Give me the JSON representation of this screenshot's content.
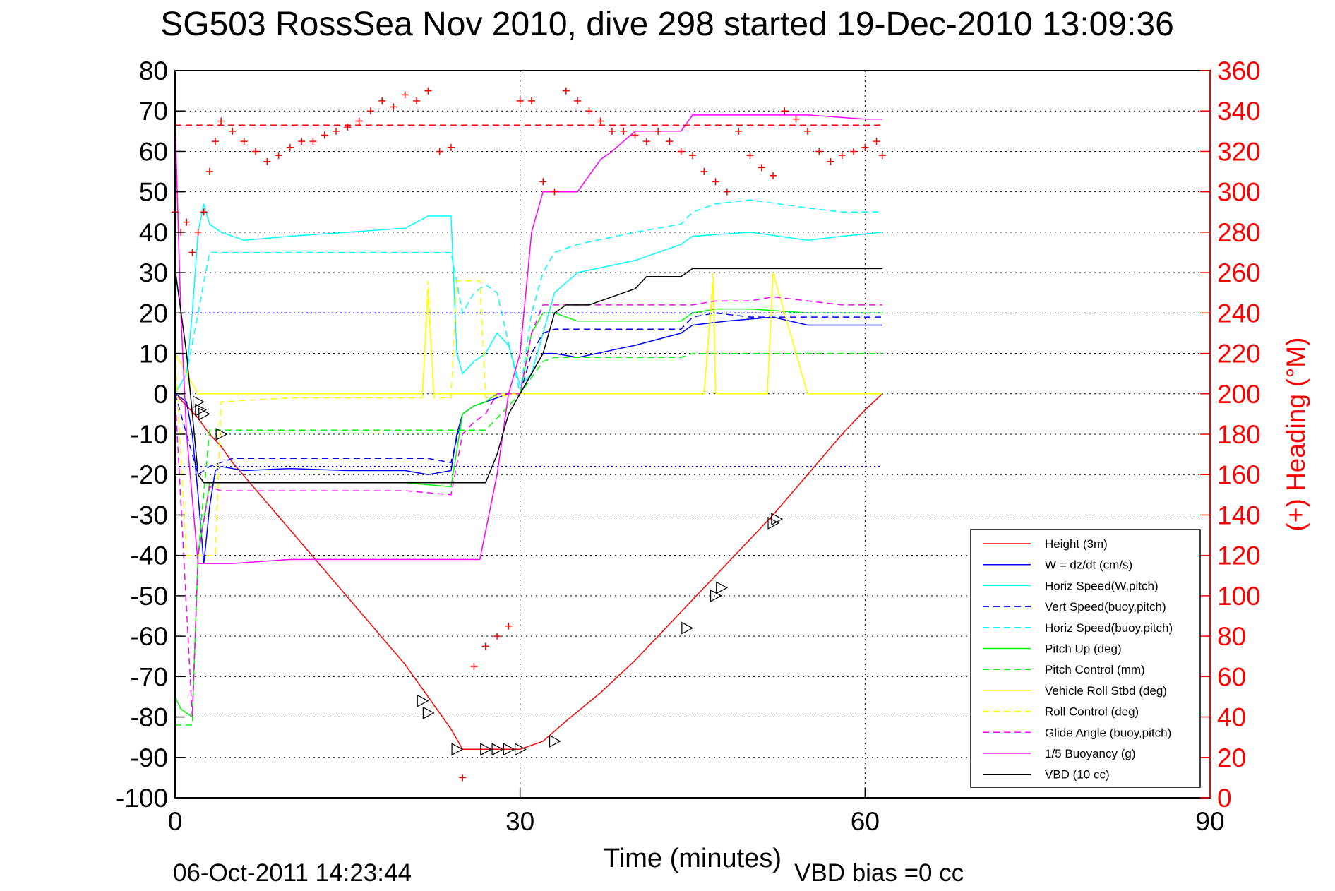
{
  "chart_data": {
    "type": "line",
    "title": "SG503 RossSea Nov 2010, dive 298 started 19-Dec-2010 13:09:36",
    "xlabel": "Time (minutes)",
    "ylabel_right": "(+) Heading (°M)",
    "footer_date": "06-Oct-2011 14:23:44",
    "footer_note": "VBD bias =0 cc",
    "xlim": [
      0,
      90
    ],
    "ylim": [
      -100,
      80
    ],
    "ylim_right": [
      0,
      360
    ],
    "x_ticks": [
      "0",
      "30",
      "60",
      "90"
    ],
    "y_ticks": [
      "80",
      "70",
      "60",
      "50",
      "40",
      "30",
      "20",
      "10",
      "0",
      "-10",
      "-20",
      "-30",
      "-40",
      "-50",
      "-60",
      "-70",
      "-80",
      "-90",
      "-100"
    ],
    "y_ticks_right": [
      "360",
      "340",
      "320",
      "300",
      "280",
      "260",
      "240",
      "220",
      "200",
      "180",
      "160",
      "140",
      "120",
      "100",
      "80",
      "60",
      "40",
      "20",
      "0"
    ],
    "grid": true,
    "legend_placement": "lower-right",
    "legend": [
      {
        "label": "Height (3m)",
        "color": "#ff0000",
        "dash": "solid"
      },
      {
        "label": "W = dz/dt (cm/s)",
        "color": "#0000ff",
        "dash": "solid"
      },
      {
        "label": "Horiz Speed(W,pitch)",
        "color": "#00ffff",
        "dash": "solid"
      },
      {
        "label": "Vert Speed(buoy,pitch)",
        "color": "#0000ff",
        "dash": "dashed"
      },
      {
        "label": "Horiz Speed(buoy,pitch)",
        "color": "#00ffff",
        "dash": "dashed"
      },
      {
        "label": "Pitch Up (deg)",
        "color": "#00ff00",
        "dash": "solid"
      },
      {
        "label": "Pitch Control (mm)",
        "color": "#00ff00",
        "dash": "dashed"
      },
      {
        "label": "Vehicle Roll Stbd (deg)",
        "color": "#ffff00",
        "dash": "solid"
      },
      {
        "label": "Roll Control (deg)",
        "color": "#ffff00",
        "dash": "dashed"
      },
      {
        "label": "Glide Angle (buoy,pitch)",
        "color": "#ff00ff",
        "dash": "dashed"
      },
      {
        "label": "1/5 Buoyancy (g)",
        "color": "#ff00ff",
        "dash": "solid"
      },
      {
        "label": "VBD (10 cc)",
        "color": "#000000",
        "dash": "solid"
      }
    ],
    "series": [
      {
        "name": "Height (3m)",
        "color": "#ff0000",
        "dash": "solid",
        "axis": "left",
        "x": [
          0,
          1,
          2,
          3,
          4,
          5,
          8,
          11,
          14,
          17,
          20,
          22,
          24,
          25,
          26,
          27,
          28,
          30,
          32,
          34,
          37,
          40,
          43,
          46,
          49,
          52,
          55,
          58,
          60,
          61.5
        ],
        "y": [
          0,
          -3,
          -6,
          -10,
          -13,
          -17,
          -27,
          -37,
          -47,
          -57,
          -67,
          -75,
          -83,
          -88,
          -88,
          -88,
          -88,
          -88,
          -86,
          -81,
          -74,
          -66,
          -57,
          -48,
          -39,
          -30,
          -20,
          -10,
          -4,
          0
        ]
      },
      {
        "name": "W = dz/dt (cm/s)",
        "color": "#0000ff",
        "dash": "solid",
        "axis": "left",
        "x": [
          0,
          1,
          1.5,
          2,
          2.5,
          3,
          3.5,
          4,
          6,
          10,
          15,
          20,
          22,
          24,
          24.5,
          25,
          26,
          27,
          28,
          29,
          30,
          31,
          32,
          33,
          35,
          40,
          44,
          45,
          48,
          52,
          55,
          58,
          61.5
        ],
        "y": [
          0,
          -2,
          -10,
          -25,
          -42,
          -28,
          -19,
          -18,
          -19,
          -18.5,
          -19,
          -19,
          -20,
          -19,
          -10,
          -5,
          -3,
          -2,
          -1,
          0,
          0,
          5,
          10,
          10,
          9,
          12,
          15,
          17,
          18,
          19,
          17,
          17,
          17
        ]
      },
      {
        "name": "Horiz Speed(W,pitch)",
        "color": "#00ffff",
        "dash": "solid",
        "axis": "left",
        "x": [
          0,
          1,
          1.5,
          2,
          2.5,
          3,
          4,
          6,
          10,
          15,
          20,
          22,
          24,
          24.5,
          25,
          26,
          27,
          28,
          29,
          30,
          31,
          32,
          33,
          35,
          40,
          44,
          45,
          50,
          55,
          58,
          61.5
        ],
        "y": [
          0,
          5,
          20,
          40,
          47,
          42,
          40,
          38,
          39,
          40,
          41,
          44,
          44,
          10,
          5,
          8,
          10,
          15,
          12,
          2,
          5,
          15,
          25,
          30,
          33,
          37,
          39,
          40,
          38,
          39,
          40
        ]
      },
      {
        "name": "Vert Speed(buoy,pitch)",
        "color": "#0000ff",
        "dash": "dashed",
        "axis": "left",
        "x": [
          0,
          2,
          3,
          5,
          10,
          15,
          20,
          22,
          24,
          25,
          26,
          27,
          28,
          30,
          31,
          32,
          33,
          35,
          40,
          44,
          45,
          47,
          50,
          55,
          58,
          61.5
        ],
        "y": [
          0,
          -20,
          -18,
          -16,
          -16,
          -16,
          -16,
          -16,
          -17,
          -5,
          -3,
          -2,
          0,
          0,
          10,
          15,
          16,
          16,
          16,
          16,
          19,
          20,
          19,
          19,
          19,
          19
        ]
      },
      {
        "name": "Horiz Speed(buoy,pitch)",
        "color": "#00ffff",
        "dash": "dashed",
        "axis": "left",
        "x": [
          0,
          1,
          2,
          3,
          5,
          10,
          15,
          20,
          24,
          25,
          26,
          27,
          28,
          30,
          31,
          32,
          33,
          35,
          40,
          44,
          45,
          47,
          50,
          55,
          58,
          61.5
        ],
        "y": [
          0,
          5,
          20,
          35,
          35,
          35,
          35,
          35,
          35,
          20,
          25,
          27,
          25,
          0,
          20,
          30,
          35,
          37,
          40,
          42,
          45,
          47,
          48,
          46,
          45,
          45
        ]
      },
      {
        "name": "Pitch Up (deg)",
        "color": "#00ff00",
        "dash": "solid",
        "axis": "left",
        "x": [
          0,
          0.5,
          1.5,
          2,
          3,
          4,
          6,
          10,
          15,
          20,
          24,
          25,
          26,
          27,
          28,
          30,
          31,
          32,
          33,
          35,
          40,
          44,
          45,
          47,
          50,
          55,
          58,
          61.5
        ],
        "y": [
          -75,
          -78,
          -80,
          -40,
          -22,
          -22,
          -22,
          -22,
          -22,
          -22,
          -23,
          -5,
          -3,
          -2,
          0,
          0,
          15,
          20,
          20,
          18,
          18,
          18,
          20,
          21,
          21,
          20,
          20,
          20
        ]
      },
      {
        "name": "Pitch Control (mm)",
        "color": "#00ff00",
        "dash": "dashed",
        "axis": "left",
        "x": [
          0,
          1.5,
          2,
          3,
          5,
          10,
          15,
          20,
          24,
          25,
          27,
          30,
          32,
          33,
          40,
          44,
          45,
          50,
          55,
          61.5
        ],
        "y": [
          -82,
          -82,
          -40,
          -9,
          -9,
          -9,
          -9,
          -9,
          -9,
          -9,
          -9,
          0,
          8,
          9,
          9,
          9,
          10,
          10,
          10,
          10
        ]
      },
      {
        "name": "Vehicle Roll Stbd (deg)",
        "color": "#ffff00",
        "dash": "solid",
        "axis": "left",
        "x": [
          0,
          1,
          2,
          3,
          4,
          5,
          10,
          15,
          20,
          21.5,
          22,
          22.5,
          24,
          25,
          26,
          27,
          28,
          30,
          33,
          40,
          46,
          46.8,
          47,
          50,
          51.5,
          52,
          55,
          58,
          61.5
        ],
        "y": [
          10,
          5,
          0,
          0,
          0,
          0,
          0,
          0,
          0,
          0,
          25,
          0,
          0,
          0,
          0,
          0,
          0,
          0,
          0,
          0,
          0,
          28,
          0,
          0,
          0,
          30,
          0,
          0,
          0
        ]
      },
      {
        "name": "Roll Control (deg)",
        "color": "#ffff00",
        "dash": "dashed",
        "axis": "left",
        "x": [
          0,
          1,
          2,
          3,
          3.5,
          4,
          10,
          20,
          21.5,
          22,
          22.5,
          24,
          24.5,
          26.5,
          27,
          30,
          40,
          46,
          46.8,
          47,
          50,
          51.5,
          52,
          55,
          61.5
        ],
        "y": [
          10,
          -40,
          -40,
          -40,
          -40,
          -2,
          -1,
          -1,
          -1,
          28,
          -1,
          -1,
          28,
          28,
          -1,
          0,
          0,
          0,
          30,
          0,
          0,
          0,
          30,
          0,
          0
        ]
      },
      {
        "name": "Glide Angle (buoy,pitch)",
        "color": "#ff00ff",
        "dash": "dashed",
        "axis": "left",
        "x": [
          0,
          1.5,
          2,
          3,
          4,
          5,
          10,
          15,
          20,
          24,
          25,
          26,
          27,
          28,
          30,
          31,
          32,
          33,
          35,
          40,
          44,
          45,
          47,
          50,
          52,
          55,
          58,
          61.5
        ],
        "y": [
          0,
          -80,
          -40,
          -23,
          -24,
          -24,
          -24,
          -24,
          -24,
          -25,
          -10,
          -7,
          -5,
          0,
          0,
          15,
          22,
          22,
          22,
          22,
          22,
          22,
          23,
          23,
          24,
          23,
          22,
          22
        ]
      },
      {
        "name": "1/5 Buoyancy (g)",
        "color": "#ff00ff",
        "dash": "solid",
        "axis": "left",
        "x": [
          0,
          0.5,
          1,
          2,
          3,
          4,
          5,
          10,
          15,
          20,
          25,
          26.5,
          28,
          29,
          30,
          31,
          32,
          35,
          37,
          38,
          40,
          41,
          44,
          45,
          50,
          55,
          60,
          61.5
        ],
        "y": [
          68,
          20,
          -10,
          -42,
          -42,
          -42,
          -42,
          -41,
          -41,
          -41,
          -41,
          -41,
          -20,
          0,
          10,
          40,
          50,
          50,
          58,
          60,
          65,
          65,
          65,
          69,
          69,
          69,
          68,
          68
        ]
      },
      {
        "name": "VBD (10 cc)",
        "color": "#000000",
        "dash": "solid",
        "axis": "left",
        "x": [
          0,
          1,
          2,
          2.5,
          5,
          10,
          15,
          20,
          25,
          27,
          28,
          29,
          30,
          32,
          33,
          34,
          35,
          36,
          37,
          40,
          41,
          44,
          45,
          50,
          55,
          61.5
        ],
        "y": [
          31,
          10,
          -20,
          -22,
          -22,
          -22,
          -22,
          -22,
          -22,
          -22,
          -15,
          -5,
          0,
          10,
          20,
          22,
          22,
          22,
          23,
          26,
          29,
          29,
          31,
          31,
          31,
          31
        ]
      },
      {
        "name": "Heading (°M)",
        "color": "#ff0000",
        "dash": "markers",
        "axis": "right",
        "x": [
          0,
          0.5,
          1,
          1.5,
          2,
          2.5,
          3,
          3.5,
          4,
          5,
          6,
          7,
          8,
          9,
          10,
          11,
          12,
          13,
          14,
          15,
          16,
          17,
          18,
          19,
          20,
          21,
          22,
          23,
          24,
          25,
          26,
          27,
          28,
          29,
          30,
          31,
          32,
          33,
          34,
          35,
          36,
          37,
          38,
          39,
          40,
          41,
          42,
          43,
          44,
          45,
          46,
          47,
          48,
          49,
          50,
          51,
          52,
          53,
          54,
          55,
          56,
          57,
          58,
          59,
          60,
          61,
          61.5
        ],
        "y": [
          290,
          280,
          285,
          270,
          280,
          290,
          310,
          325,
          335,
          330,
          325,
          320,
          315,
          318,
          322,
          325,
          325,
          328,
          330,
          332,
          335,
          340,
          345,
          342,
          348,
          345,
          350,
          320,
          322,
          10,
          65,
          75,
          80,
          85,
          345,
          345,
          305,
          300,
          350,
          345,
          340,
          335,
          330,
          330,
          328,
          325,
          330,
          325,
          320,
          318,
          310,
          305,
          300,
          330,
          318,
          312,
          308,
          340,
          336,
          330,
          320,
          315,
          318,
          320,
          322,
          325,
          318
        ]
      },
      {
        "name": "Heading (°M) reference",
        "color": "#ff0000",
        "dash": "dashed",
        "axis": "right",
        "x": [
          0,
          61.5
        ],
        "y": [
          333,
          333
        ]
      },
      {
        "name": "Pitch Up reference",
        "color": "#0000ff",
        "dash": "dotted",
        "axis": "left",
        "x": [
          0,
          61.5
        ],
        "y": [
          20,
          20
        ]
      },
      {
        "name": "Pitch Down reference",
        "color": "#0000ff",
        "dash": "dotted",
        "axis": "left",
        "x": [
          0,
          61.5
        ],
        "y": [
          -18,
          -18
        ]
      }
    ],
    "markers": {
      "name": "triangle markers",
      "color": "#000000",
      "x": [
        2,
        2.2,
        2.5,
        4,
        21.5,
        22,
        24.5,
        27,
        28,
        29,
        30,
        33,
        44.5,
        47,
        47.5,
        52,
        52.3
      ],
      "y": [
        -2,
        -4,
        -5,
        -10,
        -76,
        -79,
        -88,
        -88,
        -88,
        -88,
        -88,
        -86,
        -58,
        -50,
        -48,
        -32,
        -31
      ]
    }
  }
}
